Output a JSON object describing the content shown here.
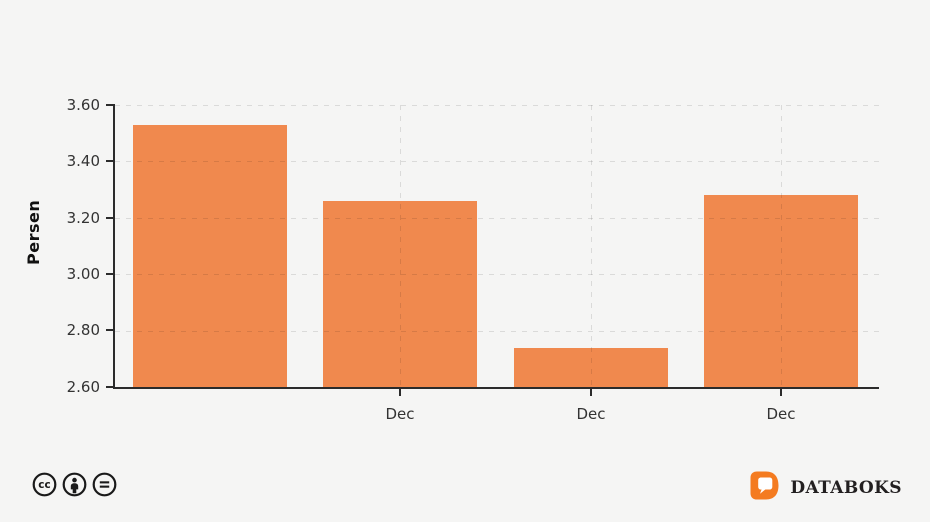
{
  "chart_data": {
    "type": "bar",
    "title": "",
    "xlabel": "",
    "ylabel": "Persen",
    "categories": [
      "",
      "Dec",
      "Dec",
      "Dec"
    ],
    "values": [
      3.53,
      3.26,
      2.74,
      3.28
    ],
    "ylim": [
      2.6,
      3.6
    ],
    "y_ticks": [
      "3.60",
      "3.40",
      "3.20",
      "3.00",
      "2.80",
      "2.60"
    ],
    "grid": true,
    "legend_position": "none",
    "bar_color": "#F0894E",
    "background_color": "#F5F5F4",
    "axis_color": "#2B2B2B"
  },
  "footer": {
    "license": {
      "icons": [
        "cc-icon",
        "attribution-icon",
        "no-derivatives-icon"
      ],
      "icon_color": "#1A1A1A"
    },
    "brand": {
      "name": "DATABOKS",
      "logo_color": "#F47B20",
      "text_color": "#221F20"
    }
  }
}
